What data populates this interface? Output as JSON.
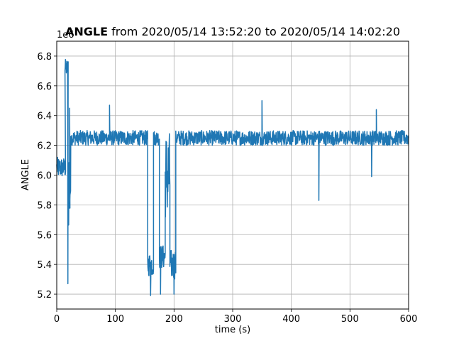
{
  "chart_data": {
    "type": "line",
    "title_bold": "ANGLE",
    "title_rest": " from 2020/05/14 13:52:20 to 2020/05/14 14:02:20",
    "xlabel": "time (s)",
    "ylabel": "ANGLE",
    "y_offset_label": "1e6",
    "xlim": [
      0,
      600
    ],
    "ylim": [
      5.1,
      6.9
    ],
    "x_ticks": [
      0,
      100,
      200,
      300,
      400,
      500,
      600
    ],
    "x_tick_labels": [
      "0",
      "100",
      "200",
      "300",
      "400",
      "500",
      "600"
    ],
    "y_ticks": [
      5.2,
      5.4,
      5.6,
      5.8,
      6.0,
      6.2,
      6.4,
      6.6,
      6.8
    ],
    "y_tick_labels": [
      "5.2",
      "5.4",
      "5.6",
      "5.8",
      "6.0",
      "6.2",
      "6.4",
      "6.6",
      "6.8"
    ],
    "grid": true,
    "line_color": "#1f77b4",
    "series": [
      {
        "segments": [
          {
            "x": [
              0,
              15
            ],
            "base": 6.05,
            "noise": 0.07
          },
          {
            "x": [
              14,
              19
            ],
            "base": 6.72,
            "noise": 0.06
          },
          {
            "x": [
              19,
              24
            ],
            "base": 5.95,
            "noise": 0.35
          },
          {
            "x": [
              24,
              155
            ],
            "base": 6.25,
            "noise": 0.05
          },
          {
            "x": [
              155,
              165
            ],
            "base": 5.4,
            "noise": 0.08
          },
          {
            "x": [
              165,
              175
            ],
            "base": 6.25,
            "noise": 0.05
          },
          {
            "x": [
              175,
              185
            ],
            "base": 5.45,
            "noise": 0.08
          },
          {
            "x": [
              185,
              193
            ],
            "base": 6.0,
            "noise": 0.3
          },
          {
            "x": [
              193,
              203
            ],
            "base": 5.4,
            "noise": 0.1
          },
          {
            "x": [
              203,
              600
            ],
            "base": 6.25,
            "noise": 0.05
          }
        ],
        "spikes": [
          {
            "x": 19,
            "y": 5.27
          },
          {
            "x": 22,
            "y": 6.45
          },
          {
            "x": 90,
            "y": 6.47
          },
          {
            "x": 160,
            "y": 5.19
          },
          {
            "x": 177,
            "y": 5.2
          },
          {
            "x": 200,
            "y": 5.2
          },
          {
            "x": 350,
            "y": 6.5
          },
          {
            "x": 447,
            "y": 5.83
          },
          {
            "x": 537,
            "y": 5.99
          },
          {
            "x": 545,
            "y": 6.44
          }
        ]
      }
    ]
  }
}
